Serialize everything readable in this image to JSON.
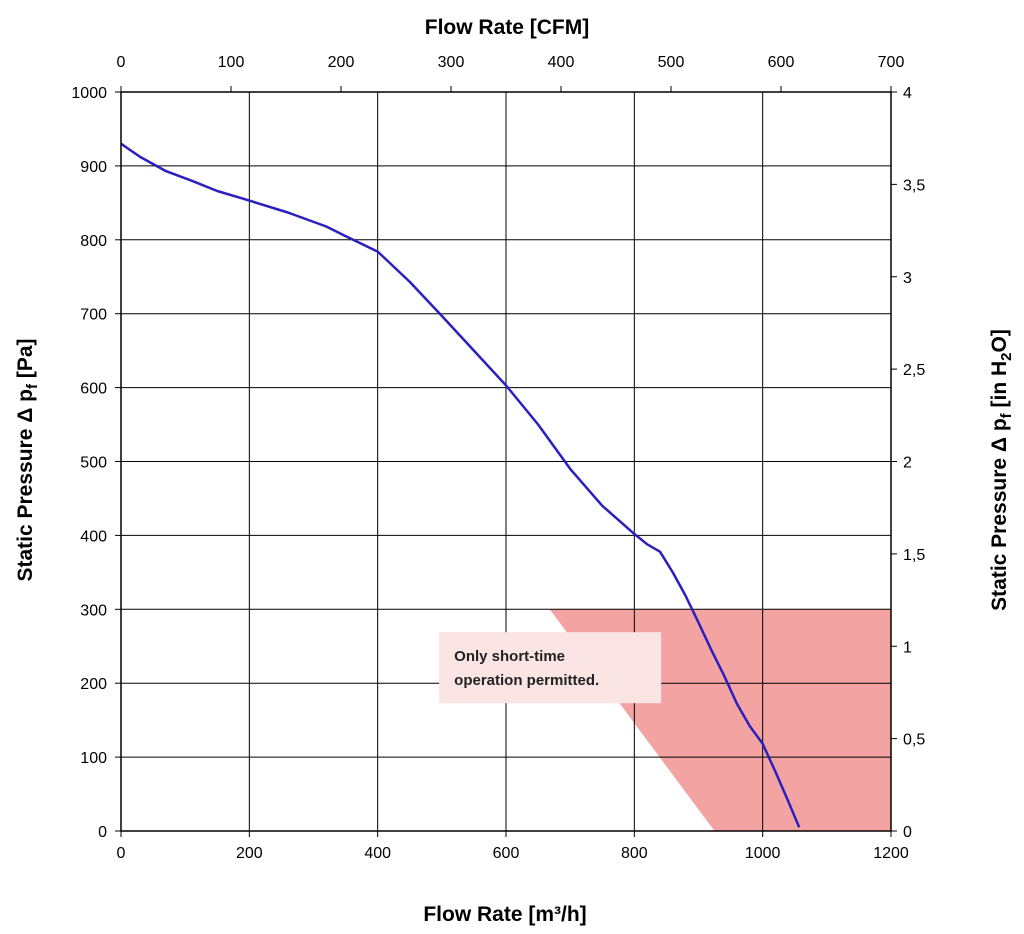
{
  "chart_data": {
    "type": "line",
    "xlabel": "Flow Rate [m³/h]",
    "x2label": "Flow Rate [CFM]",
    "ylabel": "Static Pressure Δ p_f [Pa]",
    "y2label": "Static Pressure Δ p_f [in H_2O]",
    "xlim": [
      0,
      1200
    ],
    "ylim": [
      0,
      1000
    ],
    "x2lim": [
      0,
      700
    ],
    "y2lim": [
      0,
      4
    ],
    "x_ticks": [
      "0",
      "200",
      "400",
      "600",
      "800",
      "1000",
      "1200"
    ],
    "y_ticks": [
      "0",
      "100",
      "200",
      "300",
      "400",
      "500",
      "600",
      "700",
      "800",
      "900",
      "1000"
    ],
    "x2_ticks": [
      "0",
      "100",
      "200",
      "300",
      "400",
      "500",
      "600",
      "700"
    ],
    "y2_ticks": [
      "0",
      "0,5",
      "1",
      "1,5",
      "2",
      "2,5",
      "3",
      "3,5",
      "4"
    ],
    "grid": true,
    "series": [
      {
        "color": "#2a1fbf",
        "x": [
          0,
          30,
          70,
          110,
          150,
          200,
          260,
          320,
          350,
          400,
          450,
          500,
          550,
          600,
          650,
          700,
          750,
          800,
          820,
          840,
          860,
          880,
          900,
          920,
          940,
          960,
          980,
          1000,
          1020,
          1040,
          1057
        ],
        "y": [
          930,
          912,
          893,
          880,
          866,
          853,
          837,
          818,
          805,
          784,
          743,
          697,
          650,
          603,
          550,
          490,
          440,
          402,
          388,
          378,
          350,
          318,
          282,
          245,
          210,
          172,
          142,
          118,
          80,
          40,
          5
        ]
      }
    ],
    "region": {
      "label": "restricted-operation-zone",
      "color": "#f4a3a3",
      "polygon": [
        [
          668,
          300
        ],
        [
          1200,
          300
        ],
        [
          1200,
          0
        ],
        [
          925,
          0
        ]
      ]
    },
    "annotation": {
      "line1": "Only short-time",
      "line2": "operation permitted.",
      "box_color": "#fbe4e4",
      "anchor": [
        940,
        200
      ]
    }
  }
}
